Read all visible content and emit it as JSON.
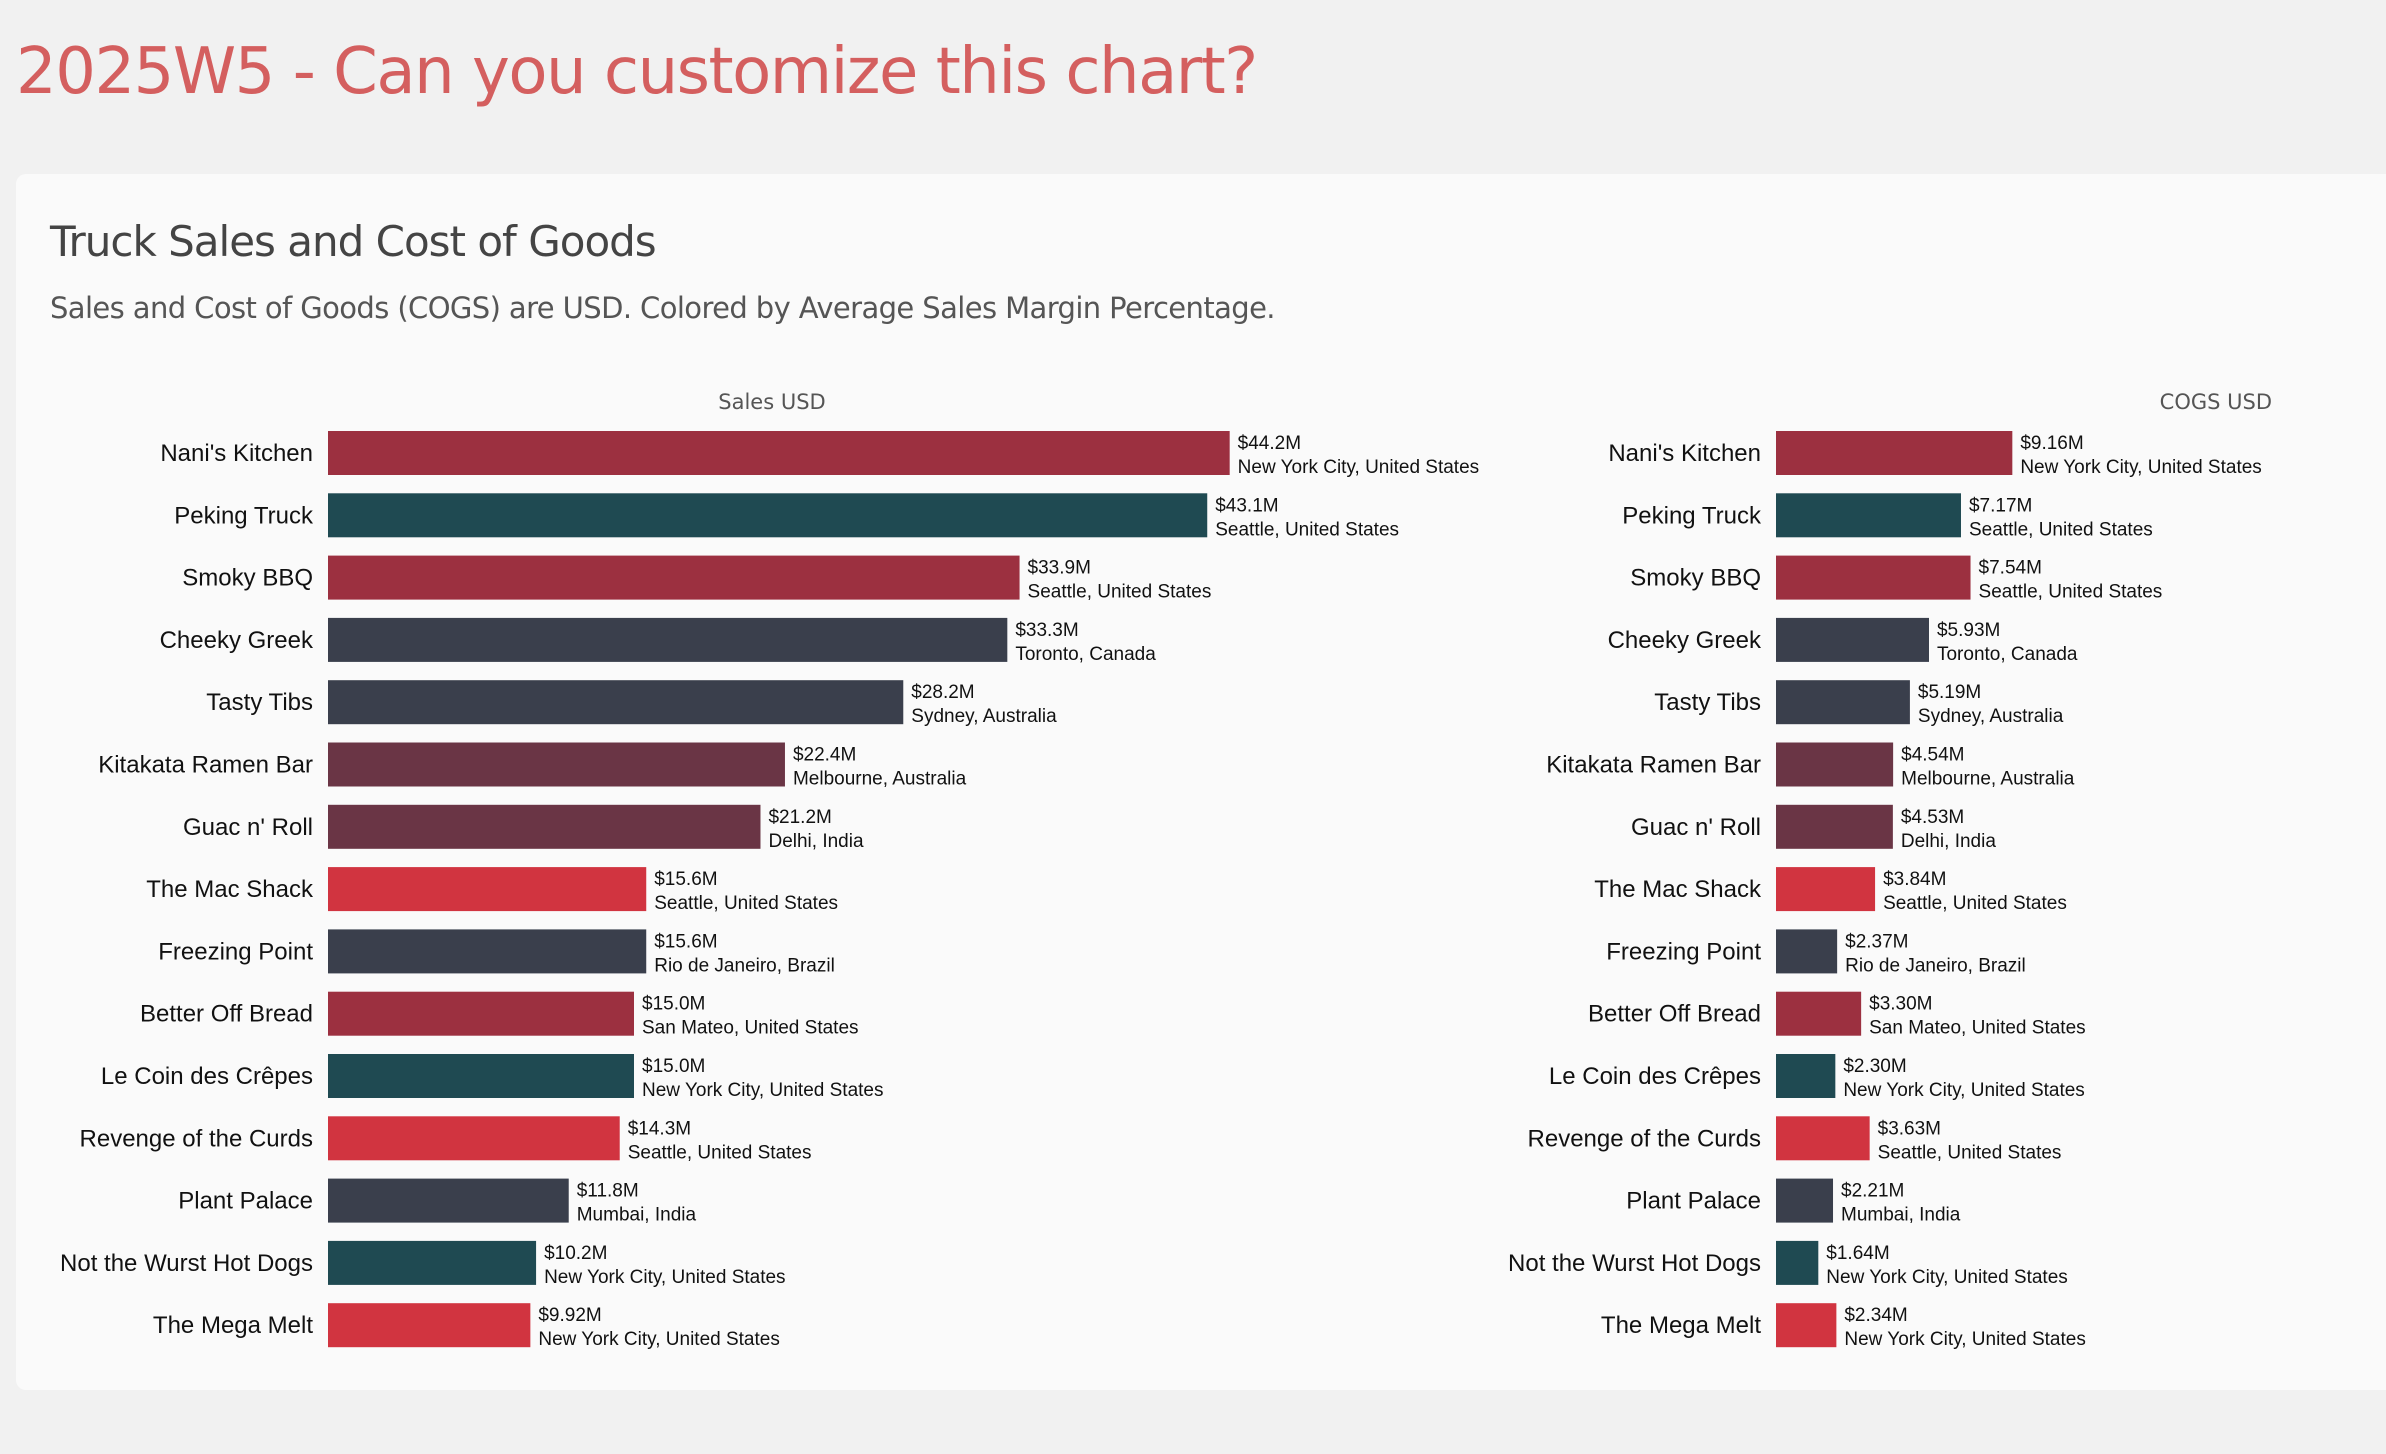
{
  "page": {
    "title": "2025W5 - Can you customize this chart?"
  },
  "card": {
    "title": "Truck Sales and Cost of Goods",
    "description": "Sales and Cost of Goods (COGS) are USD. Colored by Average Sales Margin Percentage."
  },
  "colors": {
    "page_title": "#d45f5f",
    "page_bg": "#f1f1f1",
    "card_bg": "#fafafa",
    "margin_high": "#1f4a52",
    "margin_mid": "#3a3f4c",
    "margin_midlow": "#6a3545",
    "margin_low": "#9c3040",
    "margin_lowest": "#d13440"
  },
  "chart_data": {
    "type": "bar",
    "orientation": "horizontal",
    "title": "Truck Sales and Cost of Goods",
    "subtitle": "Sales and Cost of Goods (COGS) are USD. Colored by Average Sales Margin Percentage.",
    "categories": [
      "Nani's Kitchen",
      "Peking Truck",
      "Smoky BBQ",
      "Cheeky Greek",
      "Tasty Tibs",
      "Kitakata Ramen Bar",
      "Guac n' Roll",
      "The Mac Shack",
      "Freezing Point",
      "Better Off Bread",
      "Le Coin des Crêpes",
      "Revenge of the Curds",
      "Plant Palace",
      "Not the Wurst Hot Dogs",
      "The Mega Melt"
    ],
    "locations": [
      "New York City, United States",
      "Seattle, United States",
      "Seattle, United States",
      "Toronto, Canada",
      "Sydney, Australia",
      "Melbourne, Australia",
      "Delhi, India",
      "Seattle, United States",
      "Rio de Janeiro, Brazil",
      "San Mateo, United States",
      "New York City, United States",
      "Seattle, United States",
      "Mumbai, India",
      "New York City, United States",
      "New York City, United States"
    ],
    "color_group": [
      "margin_low",
      "margin_high",
      "margin_low",
      "margin_mid",
      "margin_mid",
      "margin_midlow",
      "margin_midlow",
      "margin_lowest",
      "margin_mid",
      "margin_low",
      "margin_high",
      "margin_lowest",
      "margin_mid",
      "margin_high",
      "margin_lowest"
    ],
    "series": [
      {
        "name": "Sales USD",
        "axis_title": "Sales USD",
        "unit": "M USD",
        "values": [
          44.2,
          43.1,
          33.9,
          33.3,
          28.2,
          22.4,
          21.2,
          15.6,
          15.6,
          15.0,
          15.0,
          14.3,
          11.8,
          10.2,
          9.92
        ],
        "labels": [
          "$44.2M",
          "$43.1M",
          "$33.9M",
          "$33.3M",
          "$28.2M",
          "$22.4M",
          "$21.2M",
          "$15.6M",
          "$15.6M",
          "$15.0M",
          "$15.0M",
          "$14.3M",
          "$11.8M",
          "$10.2M",
          "$9.92M"
        ]
      },
      {
        "name": "COGS USD",
        "axis_title": "COGS USD",
        "unit": "M USD",
        "values": [
          9.16,
          7.17,
          7.54,
          5.93,
          5.19,
          4.54,
          4.53,
          3.84,
          2.37,
          3.3,
          2.3,
          3.63,
          2.21,
          1.64,
          2.34
        ],
        "labels": [
          "$9.16M",
          "$7.17M",
          "$7.54M",
          "$5.93M",
          "$5.19M",
          "$4.54M",
          "$4.53M",
          "$3.84M",
          "$2.37M",
          "$3.30M",
          "$2.30M",
          "$3.63M",
          "$2.21M",
          "$1.64M",
          "$2.34M"
        ]
      }
    ],
    "grid": false,
    "legend": "none"
  }
}
